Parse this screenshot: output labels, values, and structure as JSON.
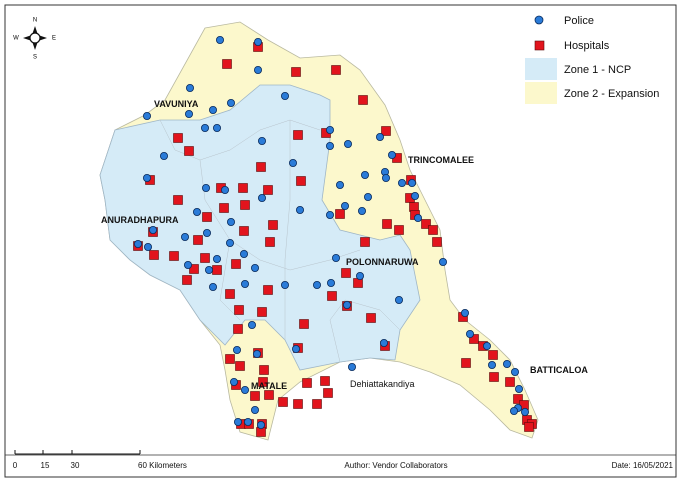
{
  "compass": {
    "north": "N",
    "south": "S",
    "east": "E",
    "west": "W"
  },
  "legend": {
    "police": "Police",
    "hospitals": "Hospitals",
    "zone1": "Zone 1 - NCP",
    "zone2": "Zone 2 - Expansion"
  },
  "places": {
    "vavuniya": "VAVUNIYA",
    "trincomalee": "TRINCOMALEE",
    "anuradhapura": "ANURADHAPURA",
    "polonnaruwa": "POLONNARUWA",
    "matale": "MATALE",
    "dehiattakandiya": "Dehiattakandiya",
    "batticaloa": "BATTICALOA"
  },
  "scale_bar": {
    "labels": [
      "0",
      "15",
      "30",
      "60 Kilometers"
    ]
  },
  "footer": {
    "author": "Author: Vendor Collaborators",
    "date": "Date: 16/05/2021"
  }
}
